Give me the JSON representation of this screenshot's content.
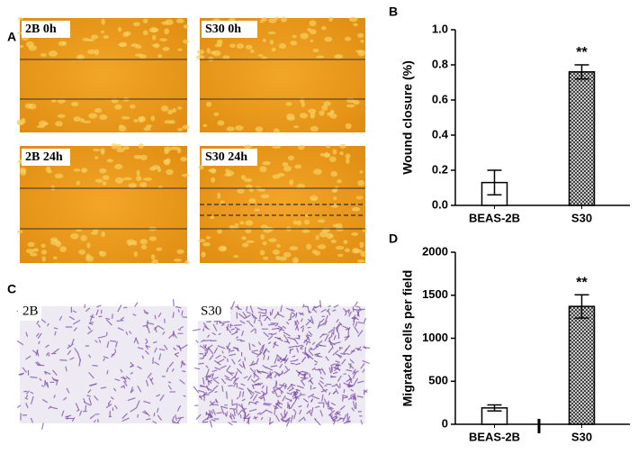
{
  "panel_labels": [
    "A",
    "B",
    "C",
    "D"
  ],
  "images": [
    {
      "label": "2B 0h"
    },
    {
      "label": "S30 0h"
    },
    {
      "label": "2B 24h"
    },
    {
      "label": "S30 24h"
    },
    {
      "label": "2B"
    },
    {
      "label": "S30"
    }
  ],
  "chart_data": [
    {
      "type": "bar",
      "y_label": "Wound closure (%)",
      "categories": [
        "BEAS-2B",
        "S30"
      ],
      "values": [
        0.13,
        0.76
      ],
      "errors": [
        0.07,
        0.04
      ],
      "colors": [
        "#ffffff",
        "#555555"
      ],
      "hatch": [
        false,
        true
      ],
      "annotation": "**",
      "ylim": [
        0,
        1
      ],
      "yticks": [
        {
          "value": 0,
          "label": "0.0"
        },
        0.2,
        0.4,
        0.6,
        0.8,
        {
          "value": 1,
          "label": "1.0"
        }
      ]
    },
    {
      "type": "bar",
      "y_label": "Migrated cells per field",
      "categories": [
        "BEAS-2B",
        "S30"
      ],
      "values": [
        190,
        1370
      ],
      "errors": [
        35,
        135
      ],
      "colors": [
        "#ffffff",
        "#555555"
      ],
      "hatch": [
        false,
        true
      ],
      "annotation": "**",
      "ylim": [
        0,
        2000
      ],
      "yticks": [
        0,
        500,
        1000,
        1500,
        2000
      ]
    }
  ]
}
